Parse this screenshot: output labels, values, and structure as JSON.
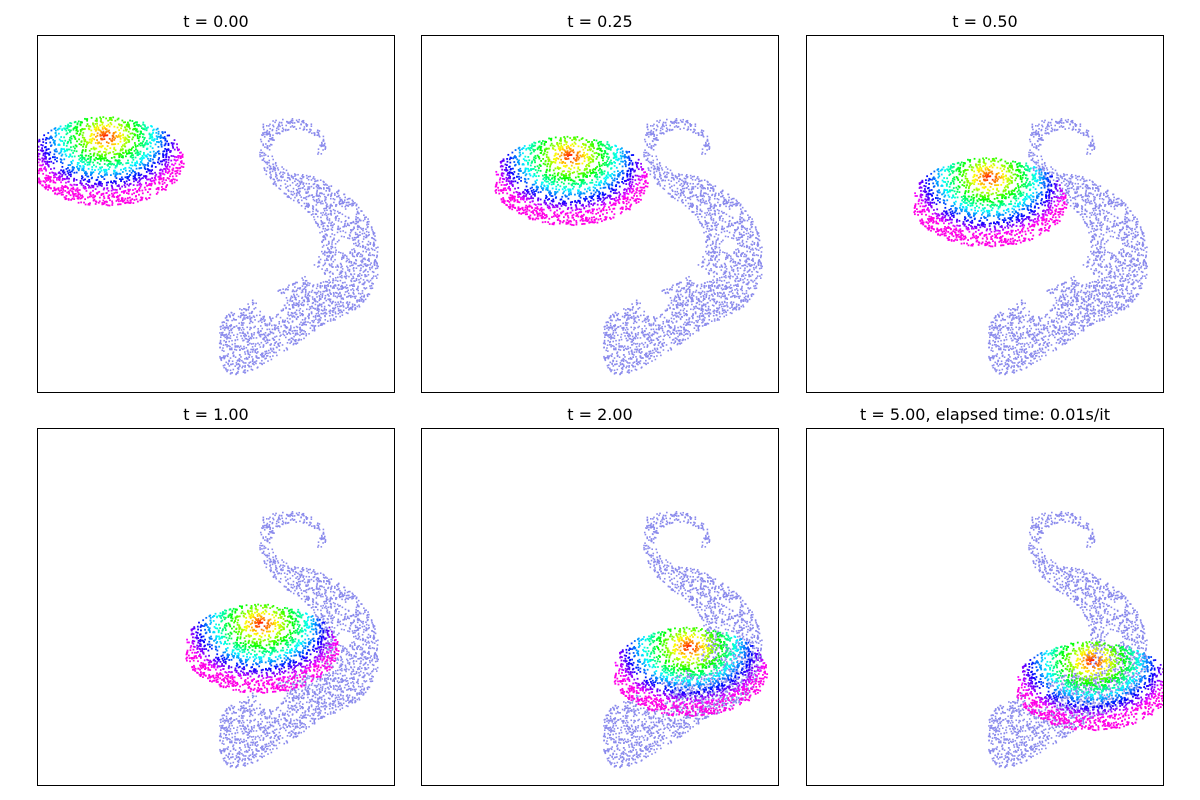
{
  "figure": {
    "panel_titles": [
      "t = 0.00",
      "t = 0.25",
      "t = 0.50",
      "t = 1.00",
      "t = 2.00",
      "t = 5.00, elapsed time: 0.01s/it"
    ]
  },
  "chart_data": {
    "type": "scatter",
    "grid": false,
    "axes_ticks": "none",
    "target_color": "#8a8aec",
    "colormap": "hsv (red at center, violet/magenta at edges)",
    "target_shape": "paisley / comma shape with curled tail and five circular holes",
    "panels": [
      {
        "t": 0.0,
        "source_center": [
          -0.62,
          0.3
        ]
      },
      {
        "t": 0.25,
        "source_center": [
          -0.17,
          0.19
        ]
      },
      {
        "t": 0.5,
        "source_center": [
          0.02,
          0.07
        ]
      },
      {
        "t": 1.0,
        "source_center": [
          0.25,
          -0.23
        ]
      },
      {
        "t": 2.0,
        "source_center": [
          0.5,
          -0.36
        ]
      },
      {
        "t": 5.0,
        "source_center": [
          0.6,
          -0.44
        ]
      }
    ]
  }
}
